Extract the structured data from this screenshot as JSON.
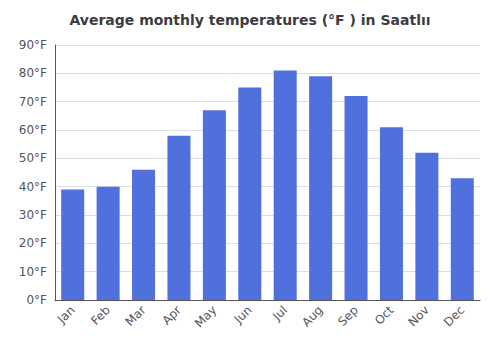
{
  "chart_data": {
    "type": "bar",
    "title": "Average monthly temperatures (°F ) in Saatlıı",
    "categories": [
      "Jan",
      "Feb",
      "Mar",
      "Apr",
      "May",
      "Jun",
      "Jul",
      "Aug",
      "Sep",
      "Oct",
      "Nov",
      "Dec"
    ],
    "values": [
      39,
      40,
      46,
      58,
      67,
      75,
      81,
      79,
      72,
      61,
      52,
      43
    ],
    "ylim": [
      0,
      90
    ],
    "yticks": [
      {
        "value": 0,
        "label": "0°F"
      },
      {
        "value": 10,
        "label": "10°F"
      },
      {
        "value": 20,
        "label": "20°F"
      },
      {
        "value": 30,
        "label": "30°F"
      },
      {
        "value": 40,
        "label": "40°F"
      },
      {
        "value": 50,
        "label": "50°F"
      },
      {
        "value": 60,
        "label": "60°F"
      },
      {
        "value": 70,
        "label": "70°F"
      },
      {
        "value": 80,
        "label": "80°F"
      },
      {
        "value": 90,
        "label": "90°F"
      }
    ],
    "grid": true
  }
}
